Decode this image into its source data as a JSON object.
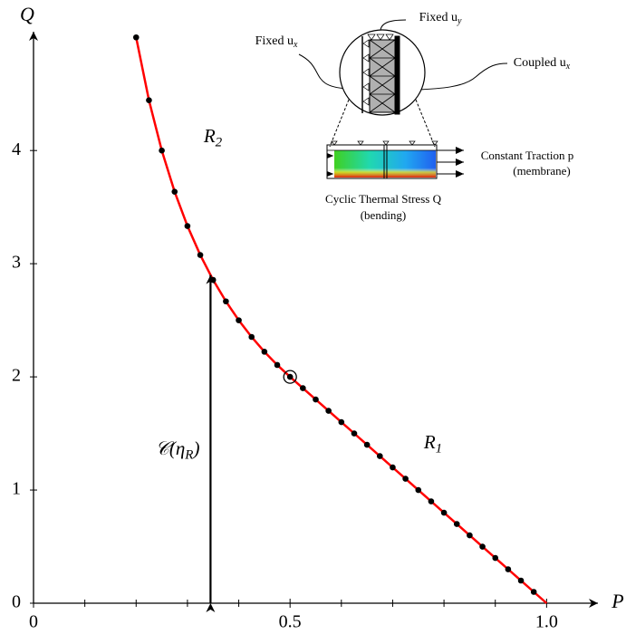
{
  "chart_data": {
    "type": "line",
    "x_label": "P",
    "y_label": "Q",
    "xlim": [
      0,
      1.1
    ],
    "ylim": [
      0,
      5.05
    ],
    "xticks": [
      0,
      0.5,
      {
        "value": 1,
        "label": "1.0"
      }
    ],
    "xminor_ticks": [
      0.1,
      0.2,
      0.3,
      0.4,
      0.6,
      0.7,
      0.8,
      0.9
    ],
    "yticks": [
      0,
      1,
      2,
      3,
      4
    ],
    "curve": {
      "color": "#ff0000",
      "x": [
        0.2,
        0.225,
        0.25,
        0.275,
        0.3,
        0.325,
        0.35,
        0.375,
        0.4,
        0.425,
        0.45,
        0.475,
        0.5,
        0.6,
        0.7,
        0.8,
        0.9,
        1.0
      ],
      "values": [
        5.0,
        4.444,
        4.0,
        3.636,
        3.333,
        3.077,
        2.857,
        2.667,
        2.5,
        2.353,
        2.222,
        2.105,
        2.0,
        1.6,
        1.2,
        0.8,
        0.4,
        0
      ]
    },
    "points": {
      "color": "#000000",
      "x": [
        0.2,
        0.225,
        0.25,
        0.275,
        0.3,
        0.325,
        0.35,
        0.375,
        0.4,
        0.425,
        0.45,
        0.475,
        0.5,
        0.525,
        0.55,
        0.575,
        0.6,
        0.625,
        0.65,
        0.675,
        0.7,
        0.725,
        0.75,
        0.775,
        0.8,
        0.825,
        0.85,
        0.875,
        0.9,
        0.925,
        0.95,
        0.975
      ],
      "values": [
        5.0,
        4.444,
        4.0,
        3.636,
        3.333,
        3.077,
        2.857,
        2.667,
        2.5,
        2.353,
        2.222,
        2.105,
        2.0,
        1.9,
        1.8,
        1.7,
        1.6,
        1.5,
        1.4,
        1.3,
        1.2,
        1.1,
        1.0,
        0.9,
        0.8,
        0.7,
        0.6,
        0.5,
        0.4,
        0.3,
        0.2,
        0.1
      ]
    },
    "highlight": {
      "x": 0.5,
      "y": 2
    },
    "arrow": {
      "x": 0.345,
      "y": 2.9
    },
    "annotations": [
      {
        "parts": [
          "R",
          "2"
        ]
      },
      {
        "parts": [
          "R",
          "1"
        ]
      },
      {
        "parts": [
          "𝒞(η",
          "R",
          ")"
        ]
      },
      {
        "parts": [
          "Fixed u",
          "x"
        ]
      },
      {
        "parts": [
          "Fixed u",
          "y"
        ]
      },
      {
        "parts": [
          "Coupled u",
          "x"
        ]
      },
      {
        "parts": [
          "Constant Traction p"
        ]
      },
      {
        "parts": [
          "(membrane)"
        ]
      },
      {
        "parts": [
          "Cyclic Thermal Stress Q"
        ]
      },
      {
        "parts": [
          "(bending)"
        ]
      }
    ]
  }
}
